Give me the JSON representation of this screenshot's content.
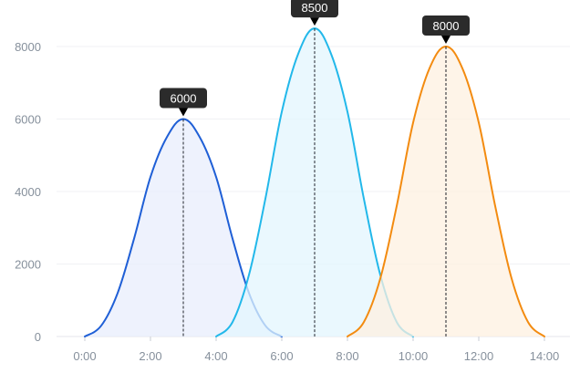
{
  "chart_data": {
    "type": "area",
    "title": "",
    "xlabel": "",
    "ylabel": "",
    "xlim": [
      -0.8,
      14.8
    ],
    "ylim": [
      0,
      8000
    ],
    "yticks": [
      0,
      2000,
      4000,
      6000,
      8000
    ],
    "yticklabels": [
      "0",
      "2000",
      "4000",
      "6000",
      "8000"
    ],
    "xticks": [
      0,
      2,
      4,
      6,
      8,
      10,
      12,
      14
    ],
    "xticklabels": [
      "0:00",
      "2:00",
      "4:00",
      "6:00",
      "8:00",
      "10:00",
      "12:00",
      "14:00"
    ],
    "grid": "horizontal",
    "series": [
      {
        "color": "#1f5fd6",
        "fill": "#e8eefc",
        "x": [
          0,
          0.5,
          1,
          1.5,
          2,
          2.5,
          3,
          3.5,
          4,
          4.5,
          5,
          5.5,
          6
        ],
        "y": [
          0,
          300,
          1200,
          2700,
          4400,
          5500,
          6000,
          5500,
          4400,
          2700,
          1200,
          300,
          0
        ],
        "peak": {
          "x": 3,
          "y": 6000,
          "label": "6000"
        }
      },
      {
        "color": "#22b8ea",
        "fill": "#e3f6fd",
        "x": [
          4,
          4.5,
          5,
          5.5,
          6,
          6.5,
          7,
          7.5,
          8,
          8.5,
          9,
          9.5,
          10
        ],
        "y": [
          0,
          400,
          1700,
          3800,
          6200,
          7800,
          8500,
          7800,
          6200,
          3800,
          1700,
          400,
          0
        ],
        "peak": {
          "x": 7,
          "y": 8500,
          "label": "8500"
        }
      },
      {
        "color": "#f38b10",
        "fill": "#fdf0e0",
        "x": [
          8,
          8.5,
          9,
          9.5,
          10,
          10.5,
          11,
          11.5,
          12,
          12.5,
          13,
          13.5,
          14
        ],
        "y": [
          0,
          400,
          1600,
          3600,
          5900,
          7400,
          8000,
          7400,
          5900,
          3600,
          1600,
          400,
          0
        ],
        "peak": {
          "x": 11,
          "y": 8000,
          "label": "8000"
        }
      }
    ]
  }
}
